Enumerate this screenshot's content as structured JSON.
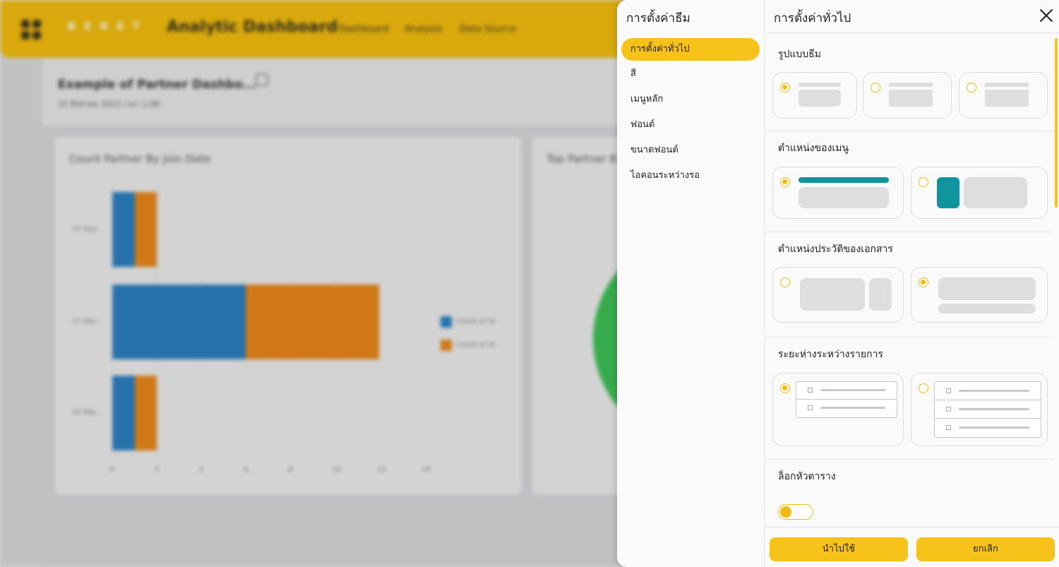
{
  "background": {
    "app_title": "Analytic Dashboard",
    "brand": "B E R E T",
    "nav": [
      "Dashboard",
      "Analysis",
      "Data Source"
    ],
    "dashboard_title": "Example of Partner Dashbo...",
    "dashboard_date": "22 สิงหาคม 2023 เวลา 1:08",
    "card1_title": "Count Partner By Join Date",
    "card2_title": "Top Partner B",
    "chart_data": {
      "type": "bar",
      "orientation": "horizontal",
      "stacked": true,
      "categories": [
        "14 Sep...",
        "27 Mar...",
        "24 Mar..."
      ],
      "series": [
        {
          "name": "Count of Id",
          "color": "#2a7fc0",
          "values": [
            1,
            6,
            1
          ]
        },
        {
          "name": "Count of Id",
          "color": "#e8861a",
          "values": [
            1,
            6,
            1
          ]
        }
      ],
      "x_ticks": [
        "0",
        "2",
        "4",
        "6",
        "8",
        "10",
        "12",
        "14"
      ],
      "xlim": [
        0,
        14
      ],
      "grid": true,
      "legend": "right"
    }
  },
  "dialog": {
    "left_title": "การตั้งค่าธีม",
    "menu": [
      {
        "label": "การตั้งค่าทั่วไป",
        "active": true
      },
      {
        "label": "สี",
        "active": false
      },
      {
        "label": "เมนูหลัก",
        "active": false
      },
      {
        "label": "ฟอนต์",
        "active": false
      },
      {
        "label": "ขนาดฟอนต์",
        "active": false
      },
      {
        "label": "ไอคอนระหว่างรอ",
        "active": false
      }
    ],
    "right_title": "การตั้งค่าทั่วไป",
    "sections": {
      "theme_style": "รูปแบบธีม",
      "menu_position": "ตำแหน่งของเมนู",
      "doc_history_position": "ตำแหน่งประวัติของเอกสาร",
      "item_spacing": "ระยะห่างระหว่างรายการ",
      "lock_table_header": "ล็อกหัวตาราง"
    },
    "apply_label": "นำไปใช้",
    "cancel_label": "ยกเลิก"
  }
}
